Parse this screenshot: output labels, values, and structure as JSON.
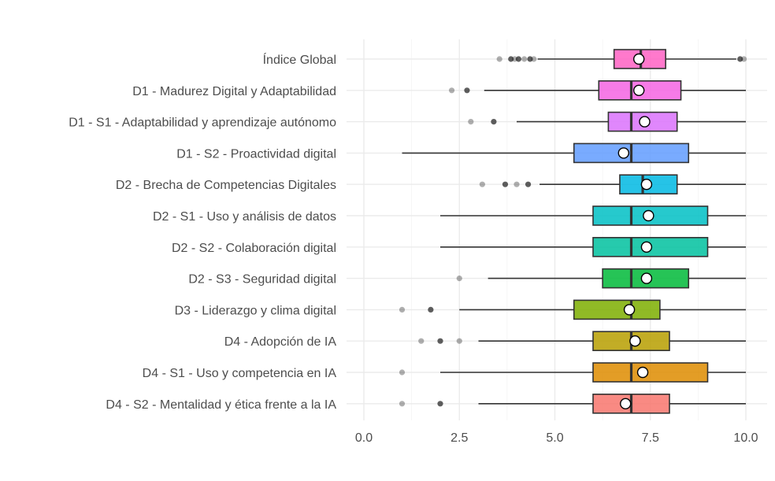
{
  "chart_data": {
    "type": "boxplot",
    "orientation": "horizontal",
    "title": "",
    "xlabel": "",
    "ylabel": "",
    "xlim": [
      -0.15,
      10.5
    ],
    "xticks": [
      0,
      2.5,
      5,
      7.5,
      10
    ],
    "xtick_labels": [
      "0.0",
      "2.5",
      "5.0",
      "7.5",
      "10.0"
    ],
    "grid": true,
    "legend": "none",
    "categories": [
      {
        "label": "Índice Global",
        "color": "#FF61C3",
        "min": 4.55,
        "q1": 6.55,
        "median": 7.25,
        "q3": 7.9,
        "max": 9.75,
        "mean": 7.2,
        "outliers": [
          3.55,
          3.85,
          3.95,
          4.05,
          4.2,
          4.35,
          4.45,
          9.85,
          9.95
        ]
      },
      {
        "label": "D1 - Madurez Digital y Adaptabilidad",
        "color": "#F564E3",
        "min": 3.15,
        "q1": 6.15,
        "median": 7.0,
        "q3": 8.3,
        "max": 10.0,
        "mean": 7.2,
        "outliers": [
          2.3,
          2.7
        ]
      },
      {
        "label": "D1 - S1 - Adaptabilidad y aprendizaje autónomo",
        "color": "#DB72FB",
        "min": 4.0,
        "q1": 6.4,
        "median": 7.0,
        "q3": 8.2,
        "max": 10.0,
        "mean": 7.35,
        "outliers": [
          2.8,
          3.4
        ]
      },
      {
        "label": "D1 - S2 - Proactividad digital",
        "color": "#619CFF",
        "min": 1.0,
        "q1": 5.5,
        "median": 7.0,
        "q3": 8.5,
        "max": 10.0,
        "mean": 6.8,
        "outliers": []
      },
      {
        "label": "D2 - Brecha de Competencias Digitales",
        "color": "#00B9E3",
        "min": 4.6,
        "q1": 6.7,
        "median": 7.3,
        "q3": 8.2,
        "max": 10.0,
        "mean": 7.4,
        "outliers": [
          3.1,
          3.7,
          4.0,
          4.3
        ]
      },
      {
        "label": "D2 - S1 - Uso y análisis de datos",
        "color": "#00BFC4",
        "min": 2.0,
        "q1": 6.0,
        "median": 7.0,
        "q3": 9.0,
        "max": 10.0,
        "mean": 7.45,
        "outliers": []
      },
      {
        "label": "D2 - S2 - Colaboración digital",
        "color": "#00C19F",
        "min": 2.0,
        "q1": 6.0,
        "median": 7.0,
        "q3": 9.0,
        "max": 10.0,
        "mean": 7.4,
        "outliers": []
      },
      {
        "label": "D2 - S3 - Seguridad digital",
        "color": "#00BA38",
        "min": 3.25,
        "q1": 6.25,
        "median": 7.0,
        "q3": 8.5,
        "max": 10.0,
        "mean": 7.4,
        "outliers": [
          2.5
        ]
      },
      {
        "label": "D3 - Liderazgo y clima digital",
        "color": "#7CAE00",
        "min": 2.5,
        "q1": 5.5,
        "median": 7.0,
        "q3": 7.75,
        "max": 10.0,
        "mean": 6.95,
        "outliers": [
          1.0,
          1.75
        ]
      },
      {
        "label": "D4 - Adopción de IA",
        "color": "#B79F00",
        "min": 3.0,
        "q1": 6.0,
        "median": 7.0,
        "q3": 8.0,
        "max": 10.0,
        "mean": 7.1,
        "outliers": [
          1.5,
          2.0,
          2.5
        ]
      },
      {
        "label": "D4 - S1 - Uso y competencia en IA",
        "color": "#DE8C00",
        "min": 2.0,
        "q1": 6.0,
        "median": 7.0,
        "q3": 9.0,
        "max": 10.0,
        "mean": 7.3,
        "outliers": [
          1.0
        ]
      },
      {
        "label": "D4 - S2 - Mentalidad y ética frente a la IA",
        "color": "#F8766D",
        "min": 3.0,
        "q1": 6.0,
        "median": 7.0,
        "q3": 8.0,
        "max": 10.0,
        "mean": 6.85,
        "outliers": [
          1.0,
          2.0
        ]
      }
    ]
  }
}
